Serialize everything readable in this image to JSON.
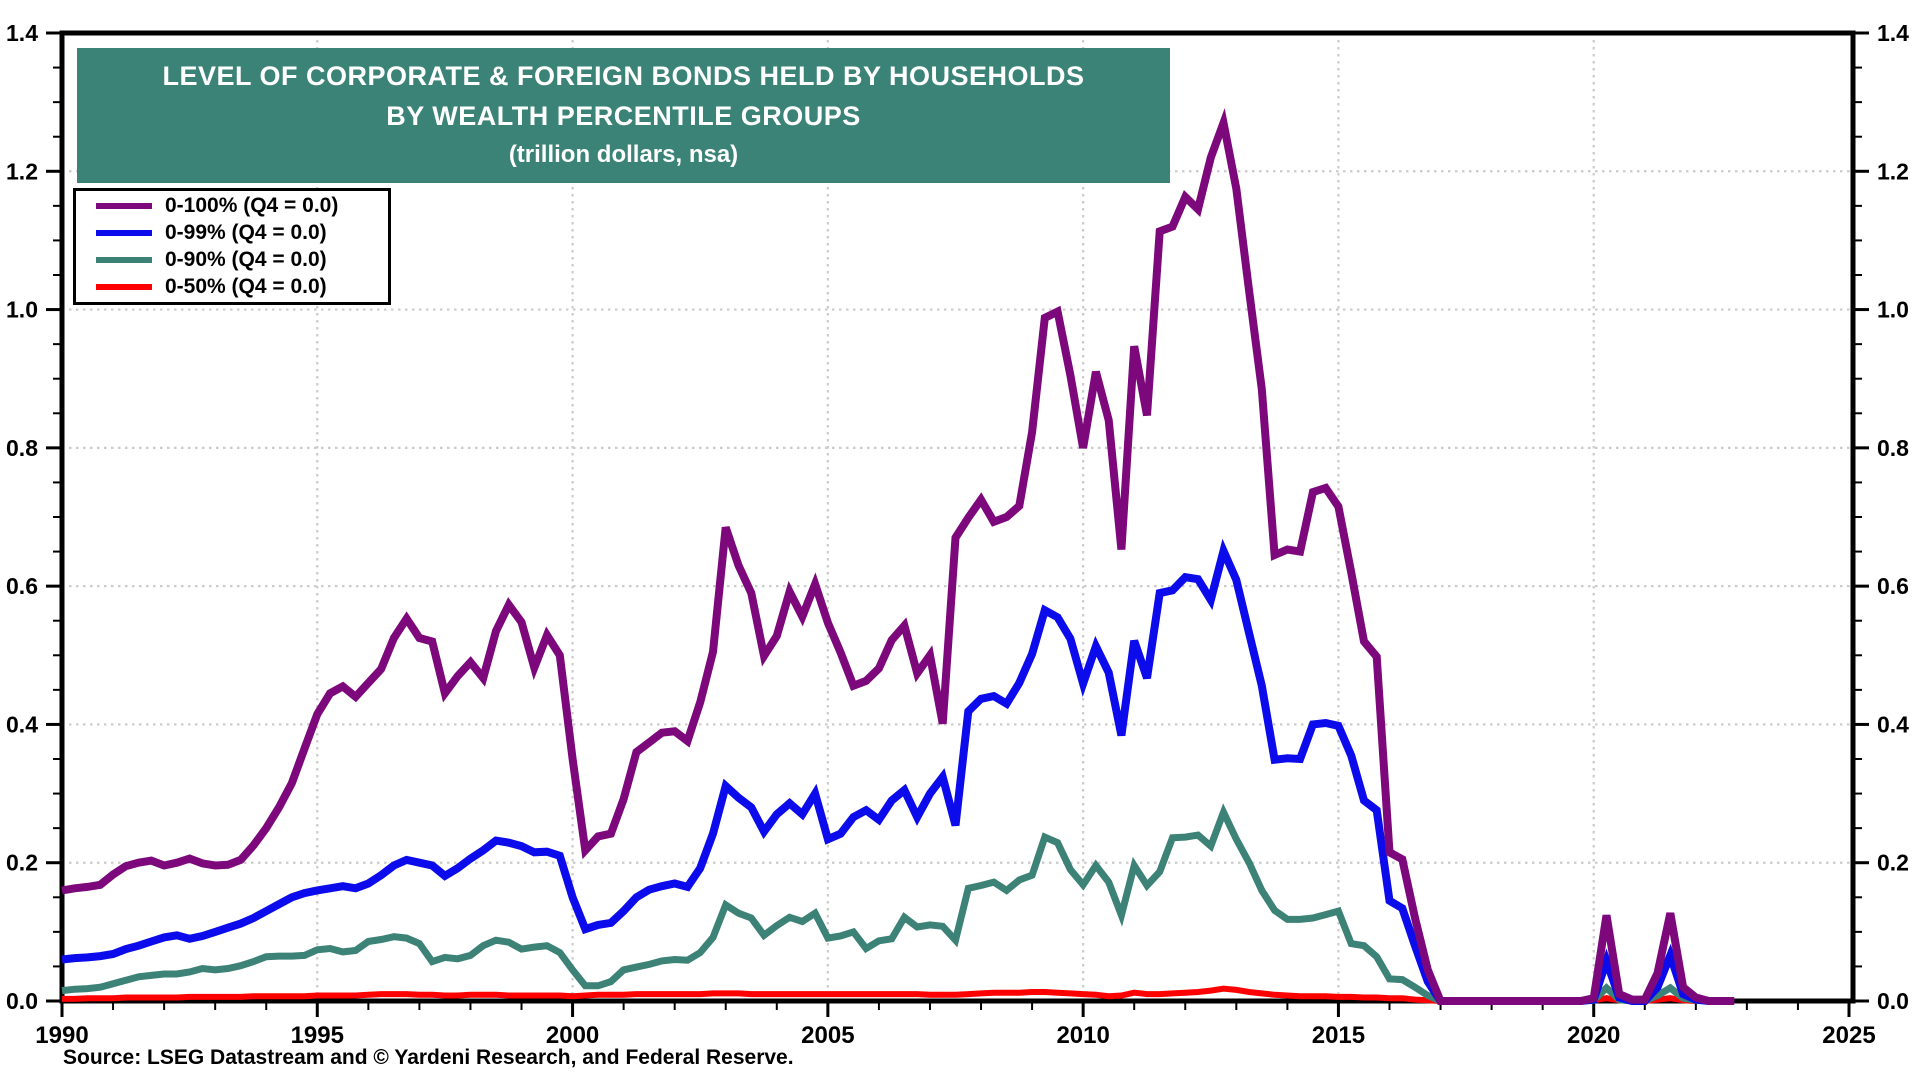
{
  "title": {
    "line1": "LEVEL OF CORPORATE & FOREIGN BONDS HELD BY HOUSEHOLDS",
    "line2": "BY WEALTH PERCENTILE GROUPS",
    "line3": "(trillion dollars, nsa)"
  },
  "source_note": "Source: LSEG Datastream and © Yardeni Research, and Federal Reserve.",
  "colors": {
    "title_bg": "#3B8377",
    "title_text": "#FFFFFF",
    "axis": "#000000",
    "grid": "#CBCBCB",
    "purple": "#7C087C",
    "blue": "#0B0BEB",
    "teal": "#3D8276",
    "red": "#FF0000"
  },
  "chart_data": {
    "type": "line",
    "title": "LEVEL OF CORPORATE & FOREIGN BONDS HELD BY HOUSEHOLDS BY WEALTH PERCENTILE GROUPS (trillion dollars, nsa)",
    "xlabel": "",
    "ylabel": "trillion dollars",
    "xlim": [
      1990,
      2025.1
    ],
    "ylim": [
      0,
      1.4
    ],
    "grid": "dotted",
    "legend_position": "top-left",
    "x_axis": {
      "tick_values": [
        1990,
        1995,
        2000,
        2005,
        2010,
        2015,
        2020,
        2025
      ],
      "tick_labels": [
        "1990",
        "1995",
        "2000",
        "2005",
        "2010",
        "2015",
        "2020",
        "2025"
      ],
      "minor_step_years": 1
    },
    "y_axis": {
      "tick_values": [
        0,
        0.2,
        0.4,
        0.6,
        0.8,
        1.0,
        1.2,
        1.4
      ],
      "tick_labels": [
        "0.0",
        "0.2",
        "0.4",
        "0.6",
        "0.8",
        "1.0",
        "1.2",
        "1.4"
      ],
      "minor_step": 0.05,
      "sides": "both"
    },
    "x_start": 1990.0,
    "x_step": 0.25,
    "series": [
      {
        "name": "0-100% (Q4 = 0.0)",
        "color_key": "purple",
        "stroke_width": 8,
        "values": [
          0.16,
          0.163,
          0.165,
          0.168,
          0.183,
          0.195,
          0.2,
          0.203,
          0.196,
          0.2,
          0.206,
          0.199,
          0.196,
          0.197,
          0.204,
          0.225,
          0.25,
          0.28,
          0.315,
          0.365,
          0.415,
          0.445,
          0.455,
          0.44,
          0.46,
          0.48,
          0.525,
          0.553,
          0.525,
          0.52,
          0.445,
          0.47,
          0.49,
          0.467,
          0.535,
          0.573,
          0.548,
          0.482,
          0.529,
          0.5,
          0.35,
          0.218,
          0.238,
          0.242,
          0.292,
          0.36,
          0.374,
          0.388,
          0.39,
          0.376,
          0.432,
          0.505,
          0.685,
          0.63,
          0.59,
          0.499,
          0.528,
          0.592,
          0.556,
          0.603,
          0.547,
          0.504,
          0.456,
          0.463,
          0.481,
          0.522,
          0.543,
          0.474,
          0.5,
          0.401,
          0.67,
          0.699,
          0.725,
          0.693,
          0.7,
          0.716,
          0.823,
          0.988,
          0.997,
          0.905,
          0.8,
          0.91,
          0.84,
          0.653,
          0.947,
          0.847,
          1.113,
          1.12,
          1.163,
          1.145,
          1.22,
          1.27,
          1.175,
          1.027,
          0.885,
          0.645,
          0.653,
          0.65,
          0.736,
          0.742,
          0.715,
          0.62,
          0.52,
          0.498,
          0.215,
          0.205,
          0.12,
          0.045,
          0,
          0,
          0,
          0,
          0,
          0,
          0,
          0,
          0,
          0,
          0,
          0,
          0.004,
          0.124,
          0.01,
          0.002,
          0.002,
          0.04,
          0.127,
          0.02,
          0.005,
          0,
          0,
          0
        ]
      },
      {
        "name": "0-99% (Q4 = 0.0)",
        "color_key": "blue",
        "stroke_width": 8,
        "values": [
          0.06,
          0.062,
          0.063,
          0.065,
          0.068,
          0.075,
          0.08,
          0.086,
          0.092,
          0.095,
          0.09,
          0.094,
          0.1,
          0.106,
          0.112,
          0.12,
          0.13,
          0.14,
          0.15,
          0.156,
          0.16,
          0.163,
          0.166,
          0.163,
          0.17,
          0.182,
          0.196,
          0.204,
          0.2,
          0.196,
          0.181,
          0.192,
          0.206,
          0.218,
          0.232,
          0.229,
          0.224,
          0.215,
          0.216,
          0.21,
          0.15,
          0.104,
          0.11,
          0.113,
          0.13,
          0.15,
          0.161,
          0.166,
          0.17,
          0.165,
          0.192,
          0.242,
          0.311,
          0.294,
          0.28,
          0.245,
          0.27,
          0.286,
          0.27,
          0.3,
          0.234,
          0.242,
          0.266,
          0.276,
          0.262,
          0.29,
          0.305,
          0.266,
          0.3,
          0.324,
          0.254,
          0.419,
          0.437,
          0.441,
          0.43,
          0.46,
          0.502,
          0.565,
          0.555,
          0.524,
          0.459,
          0.513,
          0.475,
          0.384,
          0.521,
          0.467,
          0.59,
          0.594,
          0.613,
          0.61,
          0.58,
          0.651,
          0.609,
          0.532,
          0.456,
          0.349,
          0.351,
          0.35,
          0.4,
          0.402,
          0.398,
          0.355,
          0.29,
          0.276,
          0.145,
          0.134,
          0.08,
          0.028,
          0,
          0,
          0,
          0,
          0,
          0,
          0,
          0,
          0,
          0,
          0,
          0,
          0.002,
          0.058,
          0.005,
          0,
          0,
          0.02,
          0.066,
          0.01,
          0.002,
          0,
          0,
          0
        ]
      },
      {
        "name": "0-90% (Q4 = 0.0)",
        "color_key": "teal",
        "stroke_width": 7,
        "values": [
          0.015,
          0.017,
          0.018,
          0.02,
          0.025,
          0.03,
          0.035,
          0.037,
          0.039,
          0.039,
          0.042,
          0.047,
          0.045,
          0.047,
          0.051,
          0.057,
          0.064,
          0.065,
          0.065,
          0.066,
          0.074,
          0.076,
          0.071,
          0.073,
          0.086,
          0.089,
          0.093,
          0.091,
          0.083,
          0.057,
          0.063,
          0.061,
          0.066,
          0.08,
          0.088,
          0.085,
          0.075,
          0.078,
          0.08,
          0.07,
          0.045,
          0.022,
          0.022,
          0.028,
          0.045,
          0.049,
          0.053,
          0.058,
          0.06,
          0.059,
          0.07,
          0.092,
          0.139,
          0.127,
          0.12,
          0.095,
          0.109,
          0.121,
          0.115,
          0.127,
          0.091,
          0.094,
          0.1,
          0.076,
          0.087,
          0.09,
          0.121,
          0.107,
          0.11,
          0.108,
          0.088,
          0.163,
          0.167,
          0.172,
          0.16,
          0.175,
          0.182,
          0.237,
          0.229,
          0.19,
          0.168,
          0.196,
          0.172,
          0.124,
          0.196,
          0.167,
          0.187,
          0.236,
          0.237,
          0.24,
          0.224,
          0.273,
          0.234,
          0.2,
          0.16,
          0.131,
          0.118,
          0.118,
          0.12,
          0.125,
          0.13,
          0.083,
          0.08,
          0.064,
          0.032,
          0.031,
          0.02,
          0.008,
          0,
          0,
          0,
          0,
          0,
          0,
          0,
          0,
          0,
          0,
          0,
          0,
          0.001,
          0.019,
          0.002,
          0,
          0,
          0.008,
          0.019,
          0.004,
          0.001,
          0,
          0,
          0
        ]
      },
      {
        "name": "0-50% (Q4 = 0.0)",
        "color_key": "red",
        "stroke_width": 6,
        "values": [
          0.003,
          0.003,
          0.004,
          0.004,
          0.004,
          0.005,
          0.005,
          0.005,
          0.005,
          0.005,
          0.006,
          0.006,
          0.006,
          0.006,
          0.006,
          0.007,
          0.007,
          0.007,
          0.007,
          0.007,
          0.008,
          0.008,
          0.008,
          0.008,
          0.009,
          0.01,
          0.01,
          0.01,
          0.009,
          0.009,
          0.008,
          0.008,
          0.009,
          0.009,
          0.009,
          0.008,
          0.008,
          0.008,
          0.008,
          0.008,
          0.007,
          0.008,
          0.009,
          0.009,
          0.009,
          0.01,
          0.01,
          0.01,
          0.01,
          0.01,
          0.01,
          0.011,
          0.011,
          0.011,
          0.01,
          0.01,
          0.01,
          0.01,
          0.01,
          0.01,
          0.01,
          0.01,
          0.01,
          0.01,
          0.01,
          0.01,
          0.01,
          0.01,
          0.009,
          0.009,
          0.009,
          0.01,
          0.011,
          0.012,
          0.012,
          0.012,
          0.013,
          0.013,
          0.012,
          0.011,
          0.01,
          0.009,
          0.007,
          0.008,
          0.012,
          0.01,
          0.01,
          0.011,
          0.012,
          0.013,
          0.015,
          0.018,
          0.016,
          0.013,
          0.011,
          0.009,
          0.008,
          0.007,
          0.007,
          0.007,
          0.006,
          0.006,
          0.005,
          0.005,
          0.004,
          0.004,
          0.002,
          0.001,
          0,
          0,
          0,
          0,
          0,
          0,
          0,
          0,
          0,
          0,
          0,
          0,
          0.001,
          0.004,
          0.001,
          0,
          0,
          0.002,
          0.004,
          0.001,
          0,
          0,
          0,
          0
        ]
      }
    ]
  }
}
